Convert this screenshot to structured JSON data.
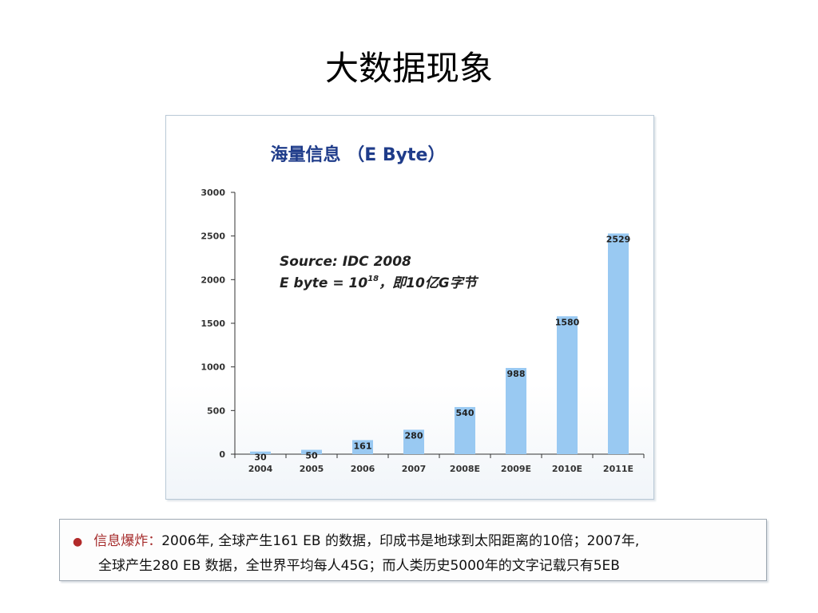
{
  "slide": {
    "title": "大数据现象"
  },
  "chart_data": {
    "type": "bar",
    "title": "海量信息 （E Byte）",
    "annotation_line1": "Source: IDC 2008",
    "annotation_line2_prefix": "E byte = 10",
    "annotation_line2_sup": "18",
    "annotation_line2_suffix": "，即10亿G字节",
    "categories": [
      "2004",
      "2005",
      "2006",
      "2007",
      "2008E",
      "2009E",
      "2010E",
      "2011E"
    ],
    "values": [
      30,
      50,
      161,
      280,
      540,
      988,
      1580,
      2529
    ],
    "data_labels": [
      "30",
      "50",
      "161",
      "280",
      "540",
      "988",
      "1580",
      "2529"
    ],
    "yticks": [
      "0",
      "500",
      "1000",
      "1500",
      "2000",
      "2500",
      "3000"
    ],
    "ylim": [
      0,
      3000
    ],
    "bar_color": "#99c9f2",
    "title_color": "#1f3c8a",
    "grid": false,
    "legend": "none"
  },
  "footer": {
    "bullet": "●",
    "highlight": "信息爆炸：",
    "line1_rest": "2006年, 全球产生161 EB 的数据，印成书是地球到太阳距离的10倍；2007年,",
    "line2": "全球产生280 EB 数据，全世界平均每人45G；而人类历史5000年的文字记载只有5EB"
  }
}
